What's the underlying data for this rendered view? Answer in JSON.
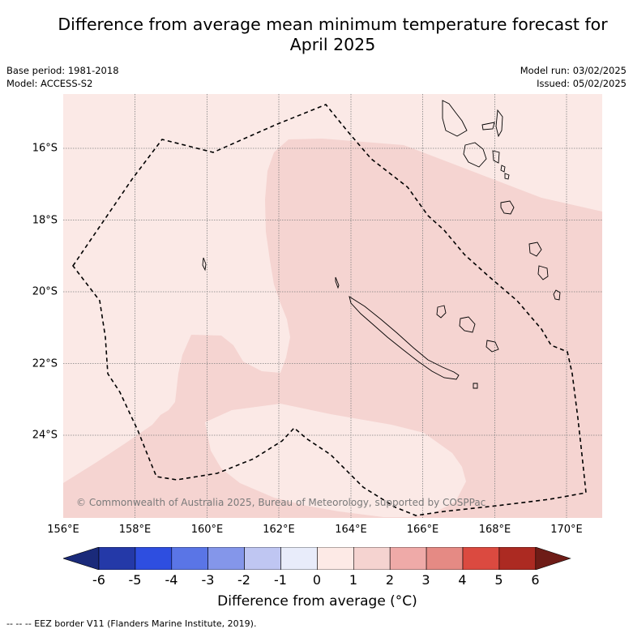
{
  "header": {
    "title_line1": "Difference from average mean minimum temperature forecast for",
    "title_line2": "April 2025",
    "base_period": "Base period: 1981-2018",
    "model": "Model: ACCESS-S2",
    "model_run": "Model run: 03/02/2025",
    "issued": "Issued: 05/02/2025"
  },
  "map": {
    "lat_labels": [
      "16°S",
      "18°S",
      "20°S",
      "22°S",
      "24°S"
    ],
    "lon_labels": [
      "156°E",
      "158°E",
      "160°E",
      "162°E",
      "164°E",
      "166°E",
      "168°E",
      "170°E"
    ],
    "copyright": "© Commonwealth of Australia 2025, Bureau of Meteorology, supported by COSPPac",
    "colors": {
      "category_0_1": "#fbe9e6",
      "category_1_2": "#f5d4d1",
      "category_minus1_0": "#e9edfb",
      "eez_border": "#000000",
      "land_outline": "#000000",
      "grid": "#808080"
    }
  },
  "legend": {
    "ticks": [
      "-6",
      "-5",
      "-4",
      "-3",
      "-2",
      "-1",
      "0",
      "1",
      "2",
      "3",
      "4",
      "5",
      "6"
    ],
    "colors": [
      "#1a2a7a",
      "#2439a8",
      "#2e4ee0",
      "#5a75e6",
      "#8496ea",
      "#bfc6f2",
      "#e8ecfa",
      "#fdeae6",
      "#f5d3d0",
      "#efaaa8",
      "#e58a84",
      "#db4a40",
      "#ac2a22",
      "#6e1c17"
    ],
    "label": "Difference from average (°C)"
  },
  "footnote": "-- -- -- EEZ border V11 (Flanders Marine Institute, 2019)."
}
